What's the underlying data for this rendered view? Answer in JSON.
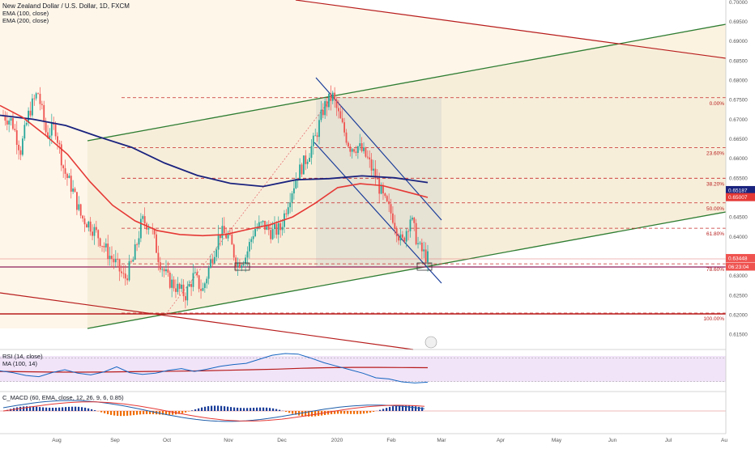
{
  "header": {
    "symbol_line": "New Zealand Dollar / U.S. Dollar, 1D, FXCM",
    "ema100": "EMA (100, close)",
    "ema200": "EMA (200, close)"
  },
  "rsi_panel": {
    "label": "RSI (14, close)",
    "ma_label": "MA (100, 14)"
  },
  "macd_panel": {
    "label": "C_MACD (60, EMA, close, 12, 26, 9, 6, 0.85)"
  },
  "colors": {
    "up": "#26a69a",
    "down": "#ef5350",
    "ema100": "#e53935",
    "ema200": "#1a237e",
    "channel": "#2e7d32",
    "downtrend": "#b71c1c",
    "fib": "#c62828",
    "desc_channel": "#1a3d99",
    "support": "#8e1f5c",
    "rsi": "#1565c0",
    "rsi_ma": "#b71c1c",
    "macd": "#1e5eaa",
    "signal": "#e53935"
  },
  "chart_data": [
    {
      "type": "candlestick",
      "title": "New Zealand Dollar / U.S. Dollar, 1D, FXCM",
      "x_ticks": [
        "Aug",
        "Sep",
        "Oct",
        "Nov",
        "Dec",
        "2020",
        "Feb",
        "Mar",
        "Apr",
        "May",
        "Jun",
        "Jul",
        "Au"
      ],
      "y_ticks": [
        "0.70000",
        "0.69500",
        "0.69000",
        "0.68500",
        "0.68000",
        "0.67500",
        "0.67000",
        "0.66500",
        "0.66000",
        "0.65500",
        "0.65000",
        "0.64500",
        "0.64000",
        "0.63500",
        "0.63000",
        "0.62500",
        "0.62000",
        "0.61500"
      ],
      "ylim": [
        0.6115,
        0.7005
      ],
      "price_path": [
        0.671,
        0.6695,
        0.662,
        0.672,
        0.677,
        0.666,
        0.668,
        0.657,
        0.652,
        0.645,
        0.643,
        0.64,
        0.636,
        0.633,
        0.629,
        0.634,
        0.644,
        0.643,
        0.634,
        0.629,
        0.627,
        0.625,
        0.63,
        0.626,
        0.634,
        0.641,
        0.64,
        0.633,
        0.635,
        0.642,
        0.643,
        0.641,
        0.642,
        0.65,
        0.656,
        0.66,
        0.665,
        0.673,
        0.676,
        0.669,
        0.663,
        0.663,
        0.66,
        0.655,
        0.649,
        0.645,
        0.638,
        0.645,
        0.637,
        0.6345
      ],
      "ema100": [
        0.6735,
        0.6705,
        0.666,
        0.661,
        0.654,
        0.648,
        0.644,
        0.6415,
        0.6405,
        0.6402,
        0.6405,
        0.6418,
        0.643,
        0.645,
        0.6485,
        0.6525,
        0.6535,
        0.653,
        0.6515,
        0.65
      ],
      "ema200": [
        0.671,
        0.67,
        0.6684,
        0.6655,
        0.6628,
        0.6588,
        0.6556,
        0.6536,
        0.6528,
        0.6545,
        0.6548,
        0.6555,
        0.655,
        0.6538
      ],
      "fib_levels": [
        {
          "label": "0.00%",
          "value": 0.6755
        },
        {
          "label": "23.60%",
          "value": 0.6627
        },
        {
          "label": "38.20%",
          "value": 0.6549
        },
        {
          "label": "50.00%",
          "value": 0.6486
        },
        {
          "label": "61.80%",
          "value": 0.6421
        },
        {
          "label": "78.60%",
          "value": 0.633
        },
        {
          "label": "100.00%",
          "value": 0.6204
        }
      ],
      "price_tags": [
        {
          "text": "0.65187",
          "bg": "#1a237e",
          "value": 0.65187
        },
        {
          "text": "0.65007",
          "bg": "#e53935",
          "value": 0.65007
        },
        {
          "text": "0.63448",
          "bg": "#ef5350",
          "value": 0.63448
        },
        {
          "text": "06:23:04",
          "bg": "#ef5350",
          "value": 0.6323
        }
      ]
    },
    {
      "type": "line",
      "title": "RSI (14, close)",
      "ma_label": "MA (100, 14)",
      "y_ticks": [
        "75.00"
      ],
      "ylim": [
        15,
        85
      ],
      "rsi": [
        48,
        45,
        40,
        38,
        45,
        50,
        44,
        41,
        46,
        55,
        45,
        42,
        44,
        49,
        52,
        47,
        51,
        56,
        59,
        61,
        68,
        75,
        78,
        77,
        70,
        62,
        56,
        50,
        44,
        36,
        34,
        29,
        27,
        28.4
      ],
      "ma": [
        47,
        46.5,
        46,
        45.8,
        46,
        46.5,
        47,
        47.5,
        48,
        49,
        50,
        51,
        52.5,
        53.5,
        54,
        54,
        53.8,
        53.5
      ],
      "tags": [
        {
          "text": "53.53",
          "bg": "#e53935"
        },
        {
          "text": "28.40",
          "bg": "#26a69a"
        }
      ]
    },
    {
      "type": "line",
      "title": "C_MACD (60, EMA, close, 12, 26, 9, 6, 0.85)",
      "tags": [
        {
          "text": "-0.00033",
          "bg": "#ef5350"
        },
        {
          "text": "-0.00435",
          "bg": "#ef5350"
        },
        {
          "text": "-0.00475",
          "bg": "#1a237e"
        },
        {
          "text": "-0.00508",
          "bg": "#ef5350"
        }
      ]
    }
  ]
}
